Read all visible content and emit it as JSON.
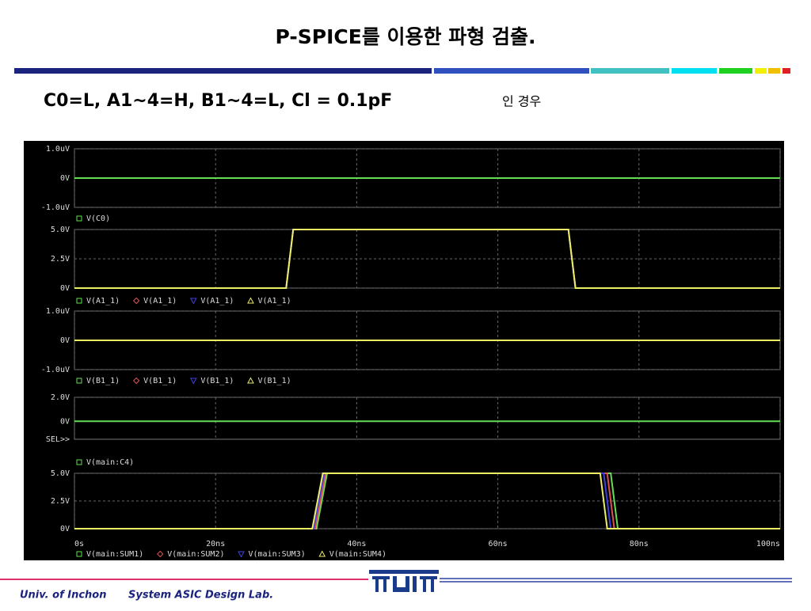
{
  "header": {
    "title": "P-SPICE를 이용한 파형 검출.",
    "subtitle": "C0=L, A1~4=H, B1~4=L, Cl = 0.1pF",
    "subtitle_suffix": "인 경우"
  },
  "chart_data": [
    {
      "type": "line",
      "xlim": [
        0,
        100
      ],
      "ylim": [
        -1,
        1
      ],
      "grid": true,
      "yticks": [
        {
          "value": 1,
          "label": "1.0uV"
        },
        {
          "value": 0,
          "label": "0V"
        },
        {
          "value": -1,
          "label": "-1.0uV"
        }
      ],
      "series": [
        {
          "name": "V(C0)",
          "color": "#66dd55",
          "marker": "square",
          "x": [
            0,
            100
          ],
          "values": [
            0,
            0
          ]
        }
      ]
    },
    {
      "type": "line",
      "xlim": [
        0,
        100
      ],
      "ylim": [
        0,
        5
      ],
      "grid": true,
      "yticks": [
        {
          "value": 5,
          "label": "5.0V"
        },
        {
          "value": 2.5,
          "label": "2.5V"
        },
        {
          "value": 0,
          "label": "0V"
        }
      ],
      "series": [
        {
          "name": "V(A1_1)",
          "color": "#66dd55",
          "marker": "square",
          "x": [
            0,
            30,
            31,
            70,
            71,
            100
          ],
          "values": [
            0,
            0,
            5,
            5,
            0,
            0
          ]
        },
        {
          "name": "V(A1_1)",
          "color": "#e05050",
          "marker": "diamond",
          "x": [
            0,
            30,
            31,
            70,
            71,
            100
          ],
          "values": [
            0,
            0,
            5,
            5,
            0,
            0
          ]
        },
        {
          "name": "V(A1_1)",
          "color": "#4040e0",
          "marker": "tri-down",
          "x": [
            0,
            30,
            31,
            70,
            71,
            100
          ],
          "values": [
            0,
            0,
            5,
            5,
            0,
            0
          ]
        },
        {
          "name": "V(A1_1)",
          "color": "#eeee66",
          "marker": "tri-up",
          "x": [
            0,
            30,
            31,
            70,
            71,
            100
          ],
          "values": [
            0,
            0,
            5,
            5,
            0,
            0
          ]
        }
      ]
    },
    {
      "type": "line",
      "xlim": [
        0,
        100
      ],
      "ylim": [
        -1,
        1
      ],
      "grid": true,
      "yticks": [
        {
          "value": 1,
          "label": "1.0uV"
        },
        {
          "value": 0,
          "label": "0V"
        },
        {
          "value": -1,
          "label": "-1.0uV"
        }
      ],
      "series": [
        {
          "name": "V(B1_1)",
          "color": "#66dd55",
          "marker": "square",
          "x": [
            0,
            100
          ],
          "values": [
            0,
            0
          ]
        },
        {
          "name": "V(B1_1)",
          "color": "#e05050",
          "marker": "diamond",
          "x": [
            0,
            100
          ],
          "values": [
            0,
            0
          ]
        },
        {
          "name": "V(B1_1)",
          "color": "#4040e0",
          "marker": "tri-down",
          "x": [
            0,
            100
          ],
          "values": [
            0,
            0
          ]
        },
        {
          "name": "V(B1_1)",
          "color": "#eeee66",
          "marker": "tri-up",
          "x": [
            0,
            100
          ],
          "values": [
            0,
            0
          ]
        }
      ]
    },
    {
      "type": "line",
      "xlim": [
        0,
        100
      ],
      "ylim": [
        -1.5,
        2
      ],
      "grid": true,
      "sel_label": "SEL>>",
      "yticks": [
        {
          "value": 2,
          "label": "2.0V"
        },
        {
          "value": 0,
          "label": "0V"
        }
      ],
      "series": [
        {
          "name": "V(main:C4)",
          "color": "#66dd55",
          "marker": "square",
          "x": [
            0,
            100
          ],
          "values": [
            0,
            0
          ]
        }
      ]
    },
    {
      "type": "line",
      "xlim": [
        0,
        100
      ],
      "ylim": [
        0,
        5
      ],
      "grid": true,
      "yticks": [
        {
          "value": 5,
          "label": "5.0V"
        },
        {
          "value": 2.5,
          "label": "2.5V"
        },
        {
          "value": 0,
          "label": "0V"
        }
      ],
      "xticks": [
        {
          "value": 0,
          "label": "0s"
        },
        {
          "value": 20,
          "label": "20ns"
        },
        {
          "value": 40,
          "label": "40ns"
        },
        {
          "value": 60,
          "label": "60ns"
        },
        {
          "value": 80,
          "label": "80ns"
        },
        {
          "value": 100,
          "label": "100ns"
        }
      ],
      "series": [
        {
          "name": "V(main:SUM1)",
          "color": "#66dd55",
          "marker": "square",
          "x": [
            0,
            34.3,
            35.8,
            76,
            77,
            100
          ],
          "values": [
            0,
            0,
            5,
            5,
            0,
            0
          ]
        },
        {
          "name": "V(main:SUM2)",
          "color": "#e05050",
          "marker": "diamond",
          "x": [
            0,
            34.1,
            35.6,
            75.5,
            76.5,
            100
          ],
          "values": [
            0,
            0,
            5,
            5,
            0,
            0
          ]
        },
        {
          "name": "V(main:SUM3)",
          "color": "#4040e0",
          "marker": "tri-down",
          "x": [
            0,
            33.9,
            35.4,
            75,
            76,
            100
          ],
          "values": [
            0,
            0,
            5,
            5,
            0,
            0
          ]
        },
        {
          "name": "V(main:SUM4)",
          "color": "#eeee66",
          "marker": "tri-up",
          "x": [
            0,
            33.7,
            35.2,
            74.5,
            75.5,
            100
          ],
          "values": [
            0,
            0,
            5,
            5,
            0,
            0
          ]
        }
      ]
    }
  ],
  "footer": {
    "left": "Univ. of Inchon",
    "right": "System ASIC Design Lab."
  }
}
